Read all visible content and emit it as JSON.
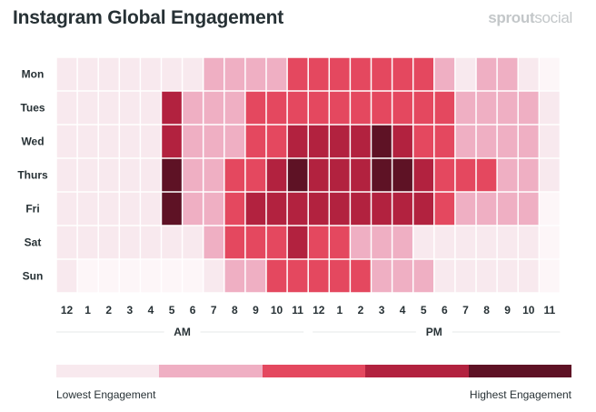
{
  "title": "Instagram Global Engagement",
  "brand": {
    "part1": "sprout",
    "part2": "social"
  },
  "chart_data": {
    "type": "heatmap",
    "rows": [
      "Mon",
      "Tues",
      "Wed",
      "Thurs",
      "Fri",
      "Sat",
      "Sun"
    ],
    "columns": [
      "12",
      "1",
      "2",
      "3",
      "4",
      "5",
      "6",
      "7",
      "8",
      "9",
      "10",
      "11",
      "12",
      "1",
      "2",
      "3",
      "4",
      "5",
      "6",
      "7",
      "8",
      "9",
      "10",
      "11"
    ],
    "period_labels": [
      "AM",
      "PM"
    ],
    "levels": 5,
    "level_colors": [
      "#f8e9ee",
      "#efafc3",
      "#e4485f",
      "#b2223f",
      "#5e1225"
    ],
    "empty_color": "#fdf6f8",
    "values": [
      [
        1,
        1,
        1,
        1,
        1,
        1,
        1,
        2,
        2,
        2,
        2,
        3,
        3,
        3,
        3,
        3,
        3,
        3,
        2,
        1,
        2,
        2,
        1,
        0
      ],
      [
        1,
        1,
        1,
        1,
        1,
        4,
        2,
        2,
        2,
        3,
        3,
        3,
        3,
        3,
        3,
        3,
        3,
        3,
        3,
        2,
        2,
        2,
        2,
        1
      ],
      [
        1,
        1,
        1,
        1,
        1,
        4,
        2,
        2,
        2,
        3,
        3,
        4,
        4,
        4,
        4,
        5,
        4,
        3,
        3,
        2,
        2,
        2,
        2,
        1
      ],
      [
        1,
        1,
        1,
        1,
        1,
        5,
        2,
        2,
        3,
        3,
        4,
        5,
        4,
        4,
        4,
        5,
        5,
        4,
        3,
        3,
        3,
        2,
        2,
        1
      ],
      [
        1,
        1,
        1,
        1,
        1,
        5,
        2,
        2,
        3,
        4,
        4,
        4,
        4,
        4,
        4,
        4,
        4,
        4,
        3,
        2,
        2,
        2,
        2,
        0
      ],
      [
        1,
        1,
        1,
        1,
        1,
        1,
        1,
        2,
        3,
        3,
        3,
        4,
        3,
        3,
        2,
        2,
        2,
        1,
        1,
        1,
        1,
        1,
        1,
        0
      ],
      [
        1,
        0,
        0,
        0,
        0,
        0,
        0,
        1,
        2,
        2,
        3,
        3,
        3,
        3,
        3,
        2,
        2,
        2,
        1,
        1,
        1,
        1,
        1,
        0
      ]
    ],
    "legend": {
      "low_label": "Lowest Engagement",
      "high_label": "Highest Engagement"
    }
  }
}
